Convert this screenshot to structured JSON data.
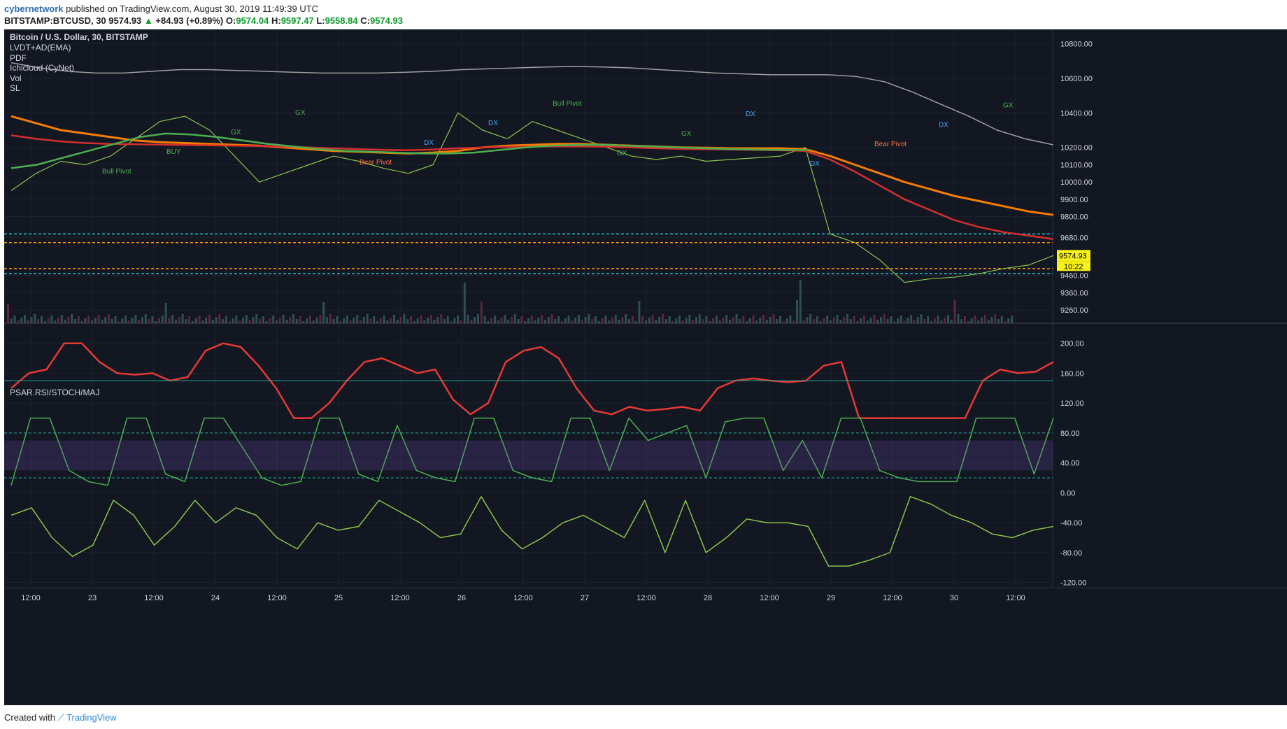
{
  "header": {
    "author": "cybernetwork",
    "published": "published on TradingView.com, August 30, 2019 11:49:39 UTC",
    "symbol": "BITSTAMP:BTCUSD, 30",
    "price": "9574.93",
    "change_arrow": "▲",
    "change": "+84.93 (+0.89%)",
    "open_label": "O:",
    "open": "9574.04",
    "high_label": "H:",
    "high": "9597.47",
    "low_label": "L:",
    "low": "9558.84",
    "close_label": "C:",
    "close": "9574.93"
  },
  "legend": {
    "title": "Bitcoin / U.S. Dollar, 30, BITSTAMP",
    "studies": [
      "LVDT+AD(EMA)",
      "PDF",
      "Ichicloud (CyNet)",
      "Vol",
      "SL"
    ],
    "lower_title": "PSAR.RSI/STOCH/MAJ"
  },
  "footer": {
    "created": "Created with",
    "brand": "TradingView"
  },
  "colors": {
    "background": "#131722",
    "up": "#26a69a",
    "down": "#ef5350",
    "orange_ma": "#f57c00",
    "red_ma": "#d32f2f",
    "green_ma": "#4caf50",
    "blue_line": "#2962ff",
    "magenta_line": "#e040fb",
    "price_tag": "#f7f01b"
  },
  "chart_data": [
    {
      "type": "line",
      "panel": "price",
      "title": "Bitcoin / U.S. Dollar, 30, BITSTAMP",
      "x_ticks": [
        "12:00",
        "23",
        "12:00",
        "24",
        "12:00",
        "25",
        "12:00",
        "26",
        "12:00",
        "27",
        "12:00",
        "28",
        "12:00",
        "29",
        "12:00",
        "30",
        "12:00"
      ],
      "y_ticks": [
        "10800.00",
        "10600.00",
        "10400.00",
        "10200.00",
        "10100.00",
        "10000.00",
        "9900.00",
        "9800.00",
        "9680.00",
        "9574.93",
        "9460.00",
        "9360.00",
        "9260.00"
      ],
      "y_time_tag": "10:22",
      "ylim": [
        9200,
        10850
      ],
      "series": [
        {
          "values": [
            9950,
            10050,
            10120,
            10100,
            10150,
            10250,
            10350,
            10380,
            10300,
            10150,
            10000,
            10050,
            10100,
            10150,
            10120,
            10080,
            10050,
            10100,
            10400,
            10300,
            10250,
            10350,
            10300,
            10250,
            10200,
            10150,
            10130,
            10150,
            10120,
            10130,
            10140,
            10150,
            10200,
            9700,
            9650,
            9550,
            9420,
            9440,
            9450,
            9470,
            9500,
            9520,
            9575
          ]
        },
        {
          "values": [
            10380,
            10340,
            10300,
            10280,
            10260,
            10240,
            10230,
            10225,
            10220,
            10215,
            10210,
            10200,
            10190,
            10180,
            10175,
            10170,
            10165,
            10170,
            10180,
            10200,
            10210,
            10215,
            10220,
            10220,
            10215,
            10210,
            10205,
            10200,
            10198,
            10195,
            10195,
            10195,
            10190,
            10150,
            10100,
            10050,
            10000,
            9960,
            9920,
            9890,
            9860,
            9830,
            9810
          ]
        },
        {
          "values": [
            10270,
            10250,
            10235,
            10225,
            10220,
            10218,
            10216,
            10214,
            10212,
            10210,
            10208,
            10205,
            10200,
            10195,
            10190,
            10186,
            10184,
            10188,
            10195,
            10200,
            10203,
            10205,
            10206,
            10206,
            10204,
            10200,
            10195,
            10192,
            10190,
            10188,
            10186,
            10184,
            10180,
            10130,
            10060,
            9980,
            9900,
            9840,
            9780,
            9740,
            9710,
            9690,
            9670
          ]
        },
        {
          "values": [
            10080,
            10100,
            10140,
            10180,
            10220,
            10260,
            10280,
            10275,
            10260,
            10240,
            10220,
            10205,
            10190,
            10180,
            10175,
            10170,
            10165,
            10165,
            10170,
            10185,
            10200,
            10210,
            10215,
            10215,
            10210,
            10205,
            10200,
            10195,
            10190,
            10188,
            10186,
            10186
          ]
        },
        {
          "values": [
            10690,
            10660,
            10640,
            10630,
            10630,
            10640,
            10650,
            10650,
            10645,
            10640,
            10635,
            10630,
            10630,
            10630,
            10635,
            10640,
            10650,
            10655,
            10660,
            10665,
            10668,
            10665,
            10660,
            10650,
            10640,
            10630,
            10625,
            10620,
            10620,
            10620,
            10610,
            10580,
            10520,
            10450,
            10380,
            10300,
            10250,
            10215
          ]
        }
      ],
      "horizontal_levels": [
        9700,
        9650,
        9500,
        9470
      ],
      "annotations": [
        "Bull Pivot",
        "BUY",
        "GX",
        "GX",
        "Bear Pivot",
        "DX",
        "DX",
        "Bull Pivot",
        "GX",
        "GX",
        "DX",
        "DX",
        "Bear Pivot",
        "DX",
        "GX"
      ]
    },
    {
      "type": "line",
      "panel": "PSAR.RSI/STOCH/MAJ",
      "y_ticks": [
        "200.00",
        "160.00",
        "120.00",
        "80.00",
        "40.00",
        "0.00",
        "-40.00",
        "-80.00",
        "-120.00"
      ],
      "ylim": [
        -125,
        210
      ],
      "series": [
        {
          "values": [
            140,
            160,
            165,
            200,
            200,
            175,
            160,
            158,
            160,
            150,
            155,
            190,
            200,
            195,
            170,
            140,
            100,
            100,
            120,
            150,
            175,
            180,
            170,
            160,
            165,
            125,
            105,
            120,
            175,
            190,
            195,
            180,
            140,
            110,
            105,
            115,
            110,
            112,
            115,
            110,
            140,
            150,
            153,
            150,
            148,
            150,
            170,
            175,
            100,
            100,
            100,
            100,
            100,
            100,
            100,
            150,
            165,
            160,
            162,
            175
          ]
        },
        {
          "values": [
            10,
            100,
            100,
            30,
            15,
            10,
            100,
            100,
            25,
            15,
            100,
            100,
            60,
            20,
            10,
            15,
            100,
            100,
            25,
            15,
            90,
            30,
            20,
            15,
            100,
            100,
            30,
            20,
            15,
            100,
            100,
            30,
            100,
            70,
            80,
            90,
            20,
            95,
            100,
            100,
            30,
            70,
            20,
            100,
            100,
            30,
            20,
            15,
            15,
            15,
            100,
            100,
            100,
            25,
            100
          ]
        },
        {
          "values": [
            -30,
            -20,
            -60,
            -85,
            -70,
            -10,
            -30,
            -70,
            -45,
            -10,
            -40,
            -20,
            -30,
            -60,
            -75,
            -40,
            -50,
            -45,
            -10,
            -25,
            -40,
            -60,
            -55,
            -5,
            -50,
            -75,
            -60,
            -40,
            -30,
            -45,
            -60,
            -10,
            -80,
            -10,
            -80,
            -60,
            -35,
            -40,
            -40,
            -45,
            -98,
            -98,
            -90,
            -80,
            -5,
            -15,
            -30,
            -40,
            -55,
            -60,
            -50,
            -45
          ]
        }
      ]
    }
  ]
}
